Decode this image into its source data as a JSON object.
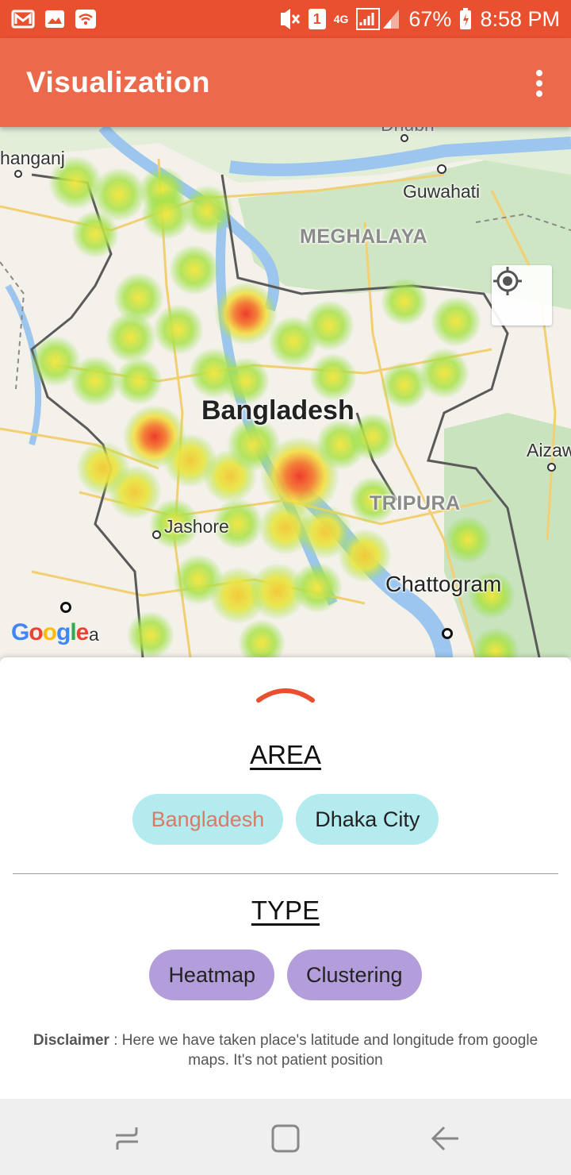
{
  "status_bar": {
    "sim_badge": "1",
    "network": "4G",
    "battery": "67%",
    "time": "8:58 PM"
  },
  "app_bar": {
    "title": "Visualization"
  },
  "map": {
    "labels": {
      "country": "Bangladesh",
      "state_meghalaya": "MEGHALAYA",
      "state_tripura": "TRIPURA",
      "city_guwahati": "Guwahati",
      "city_aizawl": "Aizaw",
      "city_jashore": "Jashore",
      "city_chattogram": "Chattogram",
      "city_kishanganj": "hanganj",
      "city_kolkata": "a",
      "city_dhubri": "Dhubri"
    },
    "attribution": "Google",
    "heatmap_colors": {
      "low": "#8ee04a",
      "mid": "#f3e03a",
      "high": "#ef3b2c"
    }
  },
  "sheet": {
    "area_title": "AREA",
    "area_options": [
      "Bangladesh",
      "Dhaka City"
    ],
    "type_title": "TYPE",
    "type_options": [
      "Heatmap",
      "Clustering"
    ],
    "disclaimer_label": "Disclaimer",
    "disclaimer_text": " : Here we have taken place's latitude and longitude from google maps. It's not patient position"
  },
  "colors": {
    "status_bar": "#e9502f",
    "app_bar": "#ec6a4c",
    "area_chip": "#b3ebef",
    "type_chip": "#b39ddb",
    "selected_text": "#d97a66"
  },
  "icons": [
    "gmail-icon",
    "gallery-icon",
    "wifi-hotspot-icon",
    "mute-icon",
    "signal-icon",
    "battery-icon",
    "overflow-menu-icon",
    "my-location-icon",
    "chevron-up-icon",
    "recents-icon",
    "home-icon",
    "back-icon"
  ]
}
